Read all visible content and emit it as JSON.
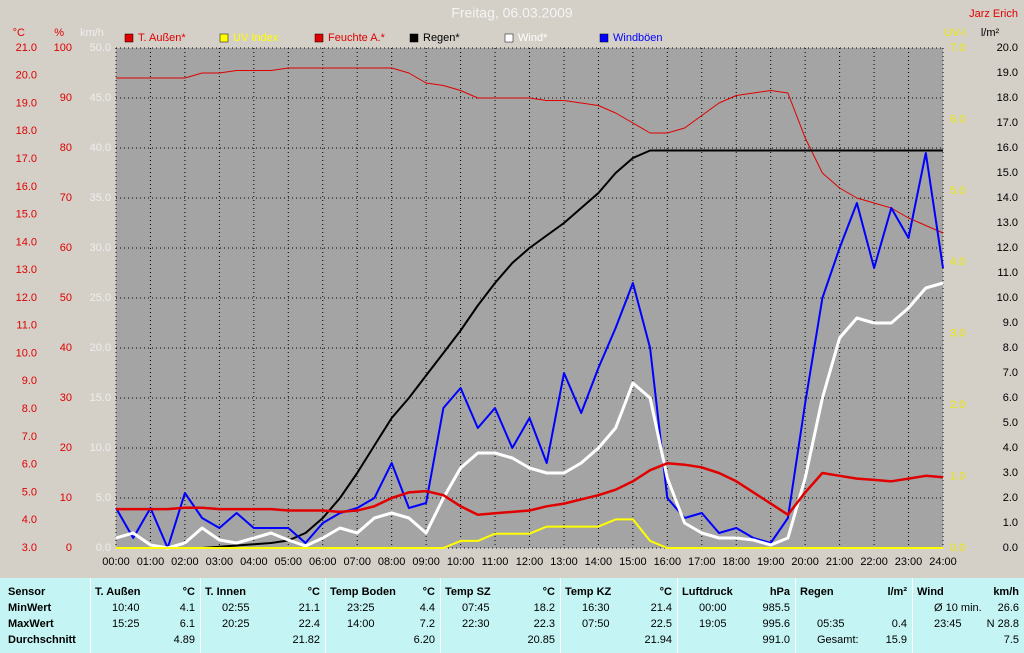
{
  "chart_data": {
    "type": "line",
    "title": "Freitag, 06.03.2009",
    "author": "Jarz Erich",
    "x": [
      0,
      0.5,
      1,
      1.5,
      2,
      2.5,
      3,
      3.5,
      4,
      4.5,
      5,
      5.5,
      6,
      6.5,
      7,
      7.5,
      8,
      8.5,
      9,
      9.5,
      10,
      10.5,
      11,
      11.5,
      12,
      12.5,
      13,
      13.5,
      14,
      14.5,
      15,
      15.5,
      16,
      16.5,
      17,
      17.5,
      18,
      18.5,
      19,
      19.5,
      20,
      20.5,
      21,
      21.5,
      22,
      22.5,
      23,
      23.5,
      24
    ],
    "xlim": [
      0,
      24
    ],
    "xticks": [
      {
        "value": 0,
        "label": "00:00"
      },
      {
        "value": 1,
        "label": "01:00"
      },
      {
        "value": 2,
        "label": "02:00"
      },
      {
        "value": 3,
        "label": "03:00"
      },
      {
        "value": 4,
        "label": "04:00"
      },
      {
        "value": 5,
        "label": "05:00"
      },
      {
        "value": 6,
        "label": "06:00"
      },
      {
        "value": 7,
        "label": "07:00"
      },
      {
        "value": 8,
        "label": "08:00"
      },
      {
        "value": 9,
        "label": "09:00"
      },
      {
        "value": 10,
        "label": "10:00"
      },
      {
        "value": 11,
        "label": "11:00"
      },
      {
        "value": 12,
        "label": "12:00"
      },
      {
        "value": 13,
        "label": "13:00"
      },
      {
        "value": 14,
        "label": "14:00"
      },
      {
        "value": 15,
        "label": "15:00"
      },
      {
        "value": 16,
        "label": "16:00"
      },
      {
        "value": 17,
        "label": "17:00"
      },
      {
        "value": 18,
        "label": "18:00"
      },
      {
        "value": 19,
        "label": "19:00"
      },
      {
        "value": 20,
        "label": "20:00"
      },
      {
        "value": 21,
        "label": "21:00"
      },
      {
        "value": 22,
        "label": "22:00"
      },
      {
        "value": 23,
        "label": "23:00"
      },
      {
        "value": 24,
        "label": "24:00"
      }
    ],
    "ylabel": "km/h",
    "ycolor": "#eeeeee",
    "ylim": [
      0,
      50
    ],
    "yticks": [
      {
        "value": 0,
        "label": "0.0"
      },
      {
        "value": 5,
        "label": "5.0"
      },
      {
        "value": 10,
        "label": "10.0"
      },
      {
        "value": 15,
        "label": "15.0"
      },
      {
        "value": 20,
        "label": "20.0"
      },
      {
        "value": 25,
        "label": "25.0"
      },
      {
        "value": 30,
        "label": "30.0"
      },
      {
        "value": 35,
        "label": "35.0"
      },
      {
        "value": 40,
        "label": "40.0"
      },
      {
        "value": 45,
        "label": "45.0"
      },
      {
        "value": 50,
        "label": "50.0"
      }
    ],
    "y2label": "l/m²",
    "y2color": "#000000",
    "y2lim": [
      0,
      20
    ],
    "y2ticks": [
      {
        "value": 0,
        "label": "0.0"
      },
      {
        "value": 1,
        "label": "1.0"
      },
      {
        "value": 2,
        "label": "2.0"
      },
      {
        "value": 3,
        "label": "3.0"
      },
      {
        "value": 4,
        "label": "4.0"
      },
      {
        "value": 5,
        "label": "5.0"
      },
      {
        "value": 6,
        "label": "6.0"
      },
      {
        "value": 7,
        "label": "7.0"
      },
      {
        "value": 8,
        "label": "8.0"
      },
      {
        "value": 9,
        "label": "9.0"
      },
      {
        "value": 10,
        "label": "10.0"
      },
      {
        "value": 11,
        "label": "11.0"
      },
      {
        "value": 12,
        "label": "12.0"
      },
      {
        "value": 13,
        "label": "13.0"
      },
      {
        "value": 14,
        "label": "14.0"
      },
      {
        "value": 15,
        "label": "15.0"
      },
      {
        "value": 16,
        "label": "16.0"
      },
      {
        "value": 17,
        "label": "17.0"
      },
      {
        "value": 18,
        "label": "18.0"
      },
      {
        "value": 19,
        "label": "19.0"
      },
      {
        "value": 20,
        "label": "20.0"
      }
    ],
    "y3label": "°C",
    "y3color": "#e00000",
    "y3lim": [
      3,
      21
    ],
    "y3ticks": [
      {
        "value": 3,
        "label": "3.0"
      },
      {
        "value": 4,
        "label": "4.0"
      },
      {
        "value": 5,
        "label": "5.0"
      },
      {
        "value": 6,
        "label": "6.0"
      },
      {
        "value": 7,
        "label": "7.0"
      },
      {
        "value": 8,
        "label": "8.0"
      },
      {
        "value": 9,
        "label": "9.0"
      },
      {
        "value": 10,
        "label": "10.0"
      },
      {
        "value": 11,
        "label": "11.0"
      },
      {
        "value": 12,
        "label": "12.0"
      },
      {
        "value": 13,
        "label": "13.0"
      },
      {
        "value": 14,
        "label": "14.0"
      },
      {
        "value": 15,
        "label": "15.0"
      },
      {
        "value": 16,
        "label": "16.0"
      },
      {
        "value": 17,
        "label": "17.0"
      },
      {
        "value": 18,
        "label": "18.0"
      },
      {
        "value": 19,
        "label": "19.0"
      },
      {
        "value": 20,
        "label": "20.0"
      },
      {
        "value": 21,
        "label": "21.0"
      }
    ],
    "y4label": "%",
    "y4color": "#e00000",
    "y4lim": [
      0,
      100
    ],
    "y4ticks": [
      0,
      10,
      20,
      30,
      40,
      50,
      60,
      70,
      80,
      90,
      100
    ],
    "y5label": "UV-I",
    "y5color": "#e8e800",
    "y5lim": [
      0,
      7
    ],
    "y5ticks": [
      {
        "value": 0,
        "label": "0.0"
      },
      {
        "value": 1,
        "label": "1.0"
      },
      {
        "value": 2,
        "label": "2.0"
      },
      {
        "value": 3,
        "label": "3.0"
      },
      {
        "value": 4,
        "label": "4.0"
      },
      {
        "value": 5,
        "label": "5.0"
      },
      {
        "value": 6,
        "label": "6.0"
      },
      {
        "value": 7,
        "label": "7.0"
      }
    ],
    "grid": true,
    "series": [
      {
        "name": "T. Außen*",
        "color": "#e00000",
        "axis": "y3",
        "values": [
          4.4,
          4.4,
          4.4,
          4.4,
          4.45,
          4.45,
          4.4,
          4.4,
          4.4,
          4.4,
          4.35,
          4.35,
          4.35,
          4.3,
          4.35,
          4.5,
          4.8,
          5.0,
          5.05,
          4.9,
          4.5,
          4.2,
          4.25,
          4.3,
          4.35,
          4.5,
          4.6,
          4.75,
          4.9,
          5.1,
          5.4,
          5.8,
          6.05,
          6.0,
          5.9,
          5.7,
          5.4,
          5.0,
          4.6,
          4.2,
          5.0,
          5.7,
          5.6,
          5.5,
          5.45,
          5.4,
          5.5,
          5.6,
          5.55
        ]
      },
      {
        "name": "UV Index",
        "color": "#ffff00",
        "axis": "y5",
        "values": [
          0,
          0,
          0,
          0,
          0,
          0,
          0,
          0,
          0,
          0,
          0,
          0,
          0,
          0,
          0,
          0,
          0,
          0,
          0,
          0,
          0.1,
          0.1,
          0.2,
          0.2,
          0.2,
          0.3,
          0.3,
          0.3,
          0.3,
          0.4,
          0.4,
          0.1,
          0,
          0,
          0,
          0,
          0,
          0,
          0,
          0,
          0,
          0,
          0,
          0,
          0,
          0,
          0,
          0,
          0
        ]
      },
      {
        "name": "Feuchte A.*",
        "color": "#e00000",
        "axis": "y4",
        "values": [
          94,
          94,
          94,
          94,
          94,
          95,
          95,
          95.5,
          95.5,
          95.5,
          96,
          96,
          96,
          96,
          96,
          96,
          96,
          95,
          93,
          92.5,
          91.5,
          90,
          90,
          90,
          90,
          89.5,
          89.5,
          89,
          88.5,
          87,
          85,
          83,
          83,
          84,
          86.5,
          89,
          90.5,
          91,
          91.5,
          91,
          82,
          75,
          72,
          70,
          69,
          68,
          66,
          64.5,
          63
        ]
      },
      {
        "name": "Regen*",
        "color": "#000000",
        "axis": "y2",
        "values": [
          0,
          0,
          0,
          0,
          0,
          0,
          0.05,
          0.1,
          0.15,
          0.2,
          0.3,
          0.6,
          1.2,
          2.0,
          3.0,
          4.1,
          5.2,
          6.0,
          6.9,
          7.8,
          8.7,
          9.7,
          10.6,
          11.4,
          12.0,
          12.5,
          13.0,
          13.6,
          14.2,
          15.0,
          15.6,
          15.9,
          15.9,
          15.9,
          15.9,
          15.9,
          15.9,
          15.9,
          15.9,
          15.9,
          15.9,
          15.9,
          15.9,
          15.9,
          15.9,
          15.9,
          15.9,
          15.9,
          15.9
        ]
      },
      {
        "name": "Wind*",
        "color": "#ffffff",
        "axis": "y",
        "values": [
          1.0,
          1.5,
          0.3,
          0,
          0.5,
          2.0,
          0.8,
          0.5,
          1.0,
          1.5,
          0.8,
          0.2,
          1.0,
          2.0,
          1.5,
          3.0,
          3.5,
          3.0,
          1.5,
          5.0,
          8.0,
          9.5,
          9.5,
          9.0,
          8.0,
          7.5,
          7.5,
          8.5,
          10.0,
          12.0,
          16.5,
          15.0,
          7.0,
          2.5,
          1.5,
          1.0,
          1.0,
          0.8,
          0.3,
          1.0,
          7.0,
          15.0,
          21.0,
          23.0,
          22.5,
          22.5,
          24.0,
          26.0,
          26.5
        ]
      },
      {
        "name": "Windböen",
        "color": "#0000ff",
        "axis": "y",
        "values": [
          4.0,
          1.0,
          4.0,
          0,
          5.5,
          3.0,
          2.0,
          3.5,
          2.0,
          2.0,
          2.0,
          0.5,
          2.5,
          3.5,
          4.0,
          5.0,
          8.5,
          4.0,
          4.5,
          14.0,
          16.0,
          12.0,
          14.0,
          10.0,
          13.0,
          8.5,
          17.5,
          13.5,
          18.0,
          22.0,
          26.5,
          20.0,
          5.0,
          3.0,
          3.5,
          1.5,
          2.0,
          1.0,
          0.5,
          3.0,
          14.5,
          25.0,
          30.0,
          34.5,
          28.0,
          34.0,
          31.0,
          39.5,
          28.0
        ]
      }
    ]
  },
  "table": {
    "row_labels": [
      "Sensor",
      "MinWert",
      "MaxWert",
      "Durchschnitt"
    ],
    "columns": [
      {
        "name": "T. Außen",
        "unit": "°C",
        "rows": [
          [
            "10:40",
            "4.1"
          ],
          [
            "15:25",
            "6.1"
          ],
          [
            "4.89"
          ]
        ]
      },
      {
        "name": "T. Innen",
        "unit": "°C",
        "rows": [
          [
            "02:55",
            "21.1"
          ],
          [
            "20:25",
            "22.4"
          ],
          [
            "21.82"
          ]
        ]
      },
      {
        "name": "Temp Boden",
        "unit": "°C",
        "rows": [
          [
            "23:25",
            "4.4"
          ],
          [
            "14:00",
            "7.2"
          ],
          [
            "6.20"
          ]
        ]
      },
      {
        "name": "Temp SZ",
        "unit": "°C",
        "rows": [
          [
            "07:45",
            "18.2"
          ],
          [
            "22:30",
            "22.3"
          ],
          [
            "20.85"
          ]
        ]
      },
      {
        "name": "Temp KZ",
        "unit": "°C",
        "rows": [
          [
            "16:30",
            "21.4"
          ],
          [
            "07:50",
            "22.5"
          ],
          [
            "21.94"
          ]
        ]
      },
      {
        "name": "Luftdruck",
        "unit": "hPa",
        "rows": [
          [
            "00:00",
            "985.5"
          ],
          [
            "19:05",
            "995.6"
          ],
          [
            "991.0"
          ]
        ]
      },
      {
        "name": "Regen",
        "unit": "l/m²",
        "rows": [
          [],
          [
            "05:35",
            "0.4"
          ],
          [
            "Gesamt:",
            "15.9"
          ]
        ]
      },
      {
        "name": "Wind",
        "unit": "km/h",
        "rows": [
          [
            "Ø 10 min.",
            "26.6"
          ],
          [
            "23:45",
            "N 28.8"
          ],
          [
            "7.5"
          ]
        ]
      }
    ]
  }
}
